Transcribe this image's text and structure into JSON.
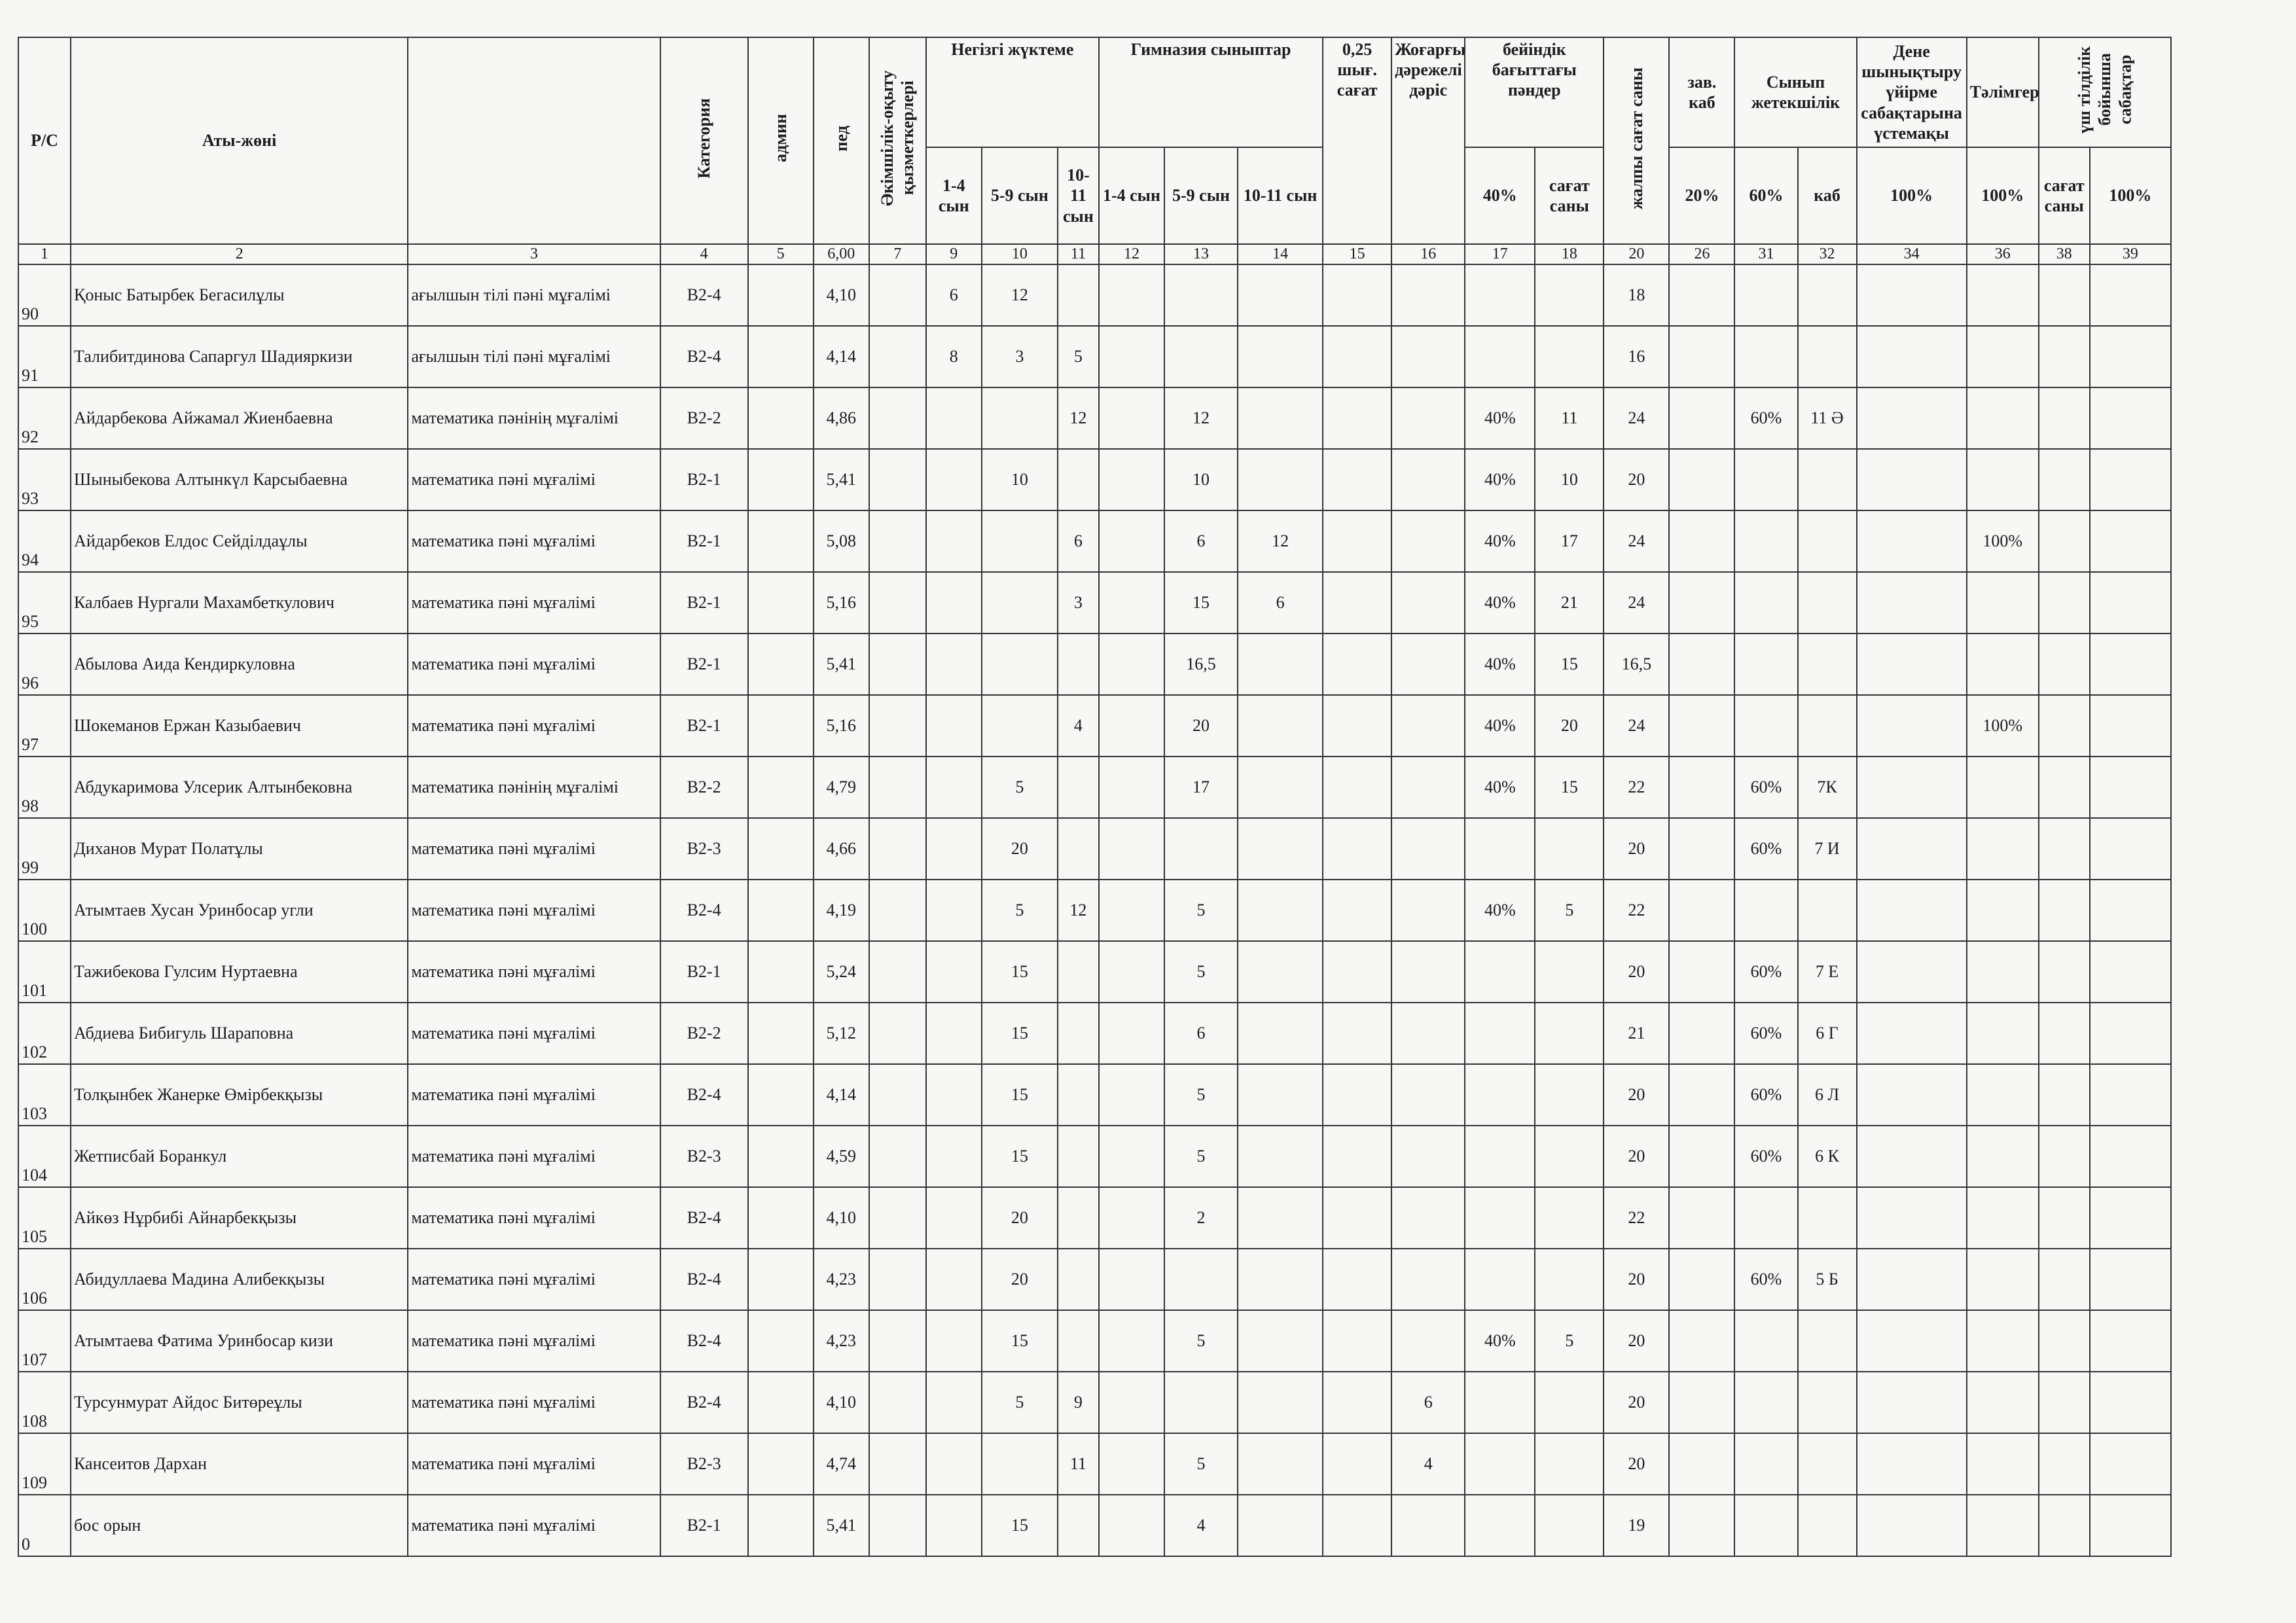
{
  "table": {
    "header": {
      "rs": "Р/С",
      "name": "Аты-жөні",
      "category": "Категория",
      "admin": "админ",
      "ped": "пед",
      "admin_teaching_staff": "Әкімшілік-оқыту қызметкерлері",
      "basic_load": "Негізгі жүктеме",
      "gymnasium_classes": "Гимназия сыныптар",
      "hours_025": "0,25 шығ. сағат",
      "higher_lecture": "Жоғарғы дәрежелі дәріс",
      "profile_subjects": "бейіндік бағыттағы пәндер",
      "total_hours": "жалпы сағат саны",
      "head_of_room": "зав. каб",
      "class_teacher": "Сынып жетекшілік",
      "pe_clubs": "Дене шынықтыру үйірме сабақтарына үстемақы",
      "mentoring": "Тәлімгерлік",
      "trilingual": "үш тілділік бойынша сабақтар"
    },
    "header_sub": [
      "1-4 сын",
      "5-9 сын",
      "10-11 сын",
      "1-4 сын",
      "5-9 сын",
      "10-11 сын",
      "40%",
      "сағат саны",
      "20%",
      "60%",
      "каб",
      "100%",
      "100%",
      "сағат саны",
      "100%"
    ],
    "column_numbers": [
      "1",
      "2",
      "3",
      "4",
      "5",
      "6,00",
      "7",
      "9",
      "10",
      "11",
      "12",
      "13",
      "14",
      "15",
      "16",
      "17",
      "18",
      "20",
      "26",
      "31",
      "32",
      "34",
      "36",
      "38",
      "39"
    ],
    "rows": [
      [
        "90",
        "Қоныс Батырбек Бегасилұлы",
        "ағылшын тілі пәні мұғалімі",
        "В2-4",
        null,
        "4,10",
        null,
        "6",
        "12",
        null,
        null,
        null,
        null,
        null,
        null,
        null,
        null,
        "18",
        null,
        null,
        null,
        null,
        null,
        null,
        null
      ],
      [
        "91",
        "Талибитдинова Сапаргул Шадияркизи",
        "ағылшын тілі пәні мұғалімі",
        "В2-4",
        null,
        "4,14",
        null,
        "8",
        "3",
        "5",
        null,
        null,
        null,
        null,
        null,
        null,
        null,
        "16",
        null,
        null,
        null,
        null,
        null,
        null,
        null
      ],
      [
        "92",
        "Айдарбекова Айжамал Жиенбаевна",
        "математика пәнінің мұғалімі",
        "В2-2",
        null,
        "4,86",
        null,
        null,
        null,
        "12",
        null,
        "12",
        null,
        null,
        null,
        "40%",
        "11",
        "24",
        null,
        "60%",
        "11 Ә",
        null,
        null,
        null,
        null
      ],
      [
        "93",
        "Шыныбекова Алтынкүл Карсыбаевна",
        "математика пәні мұғалімі",
        "В2-1",
        null,
        "5,41",
        null,
        null,
        "10",
        null,
        null,
        "10",
        null,
        null,
        null,
        "40%",
        "10",
        "20",
        null,
        null,
        null,
        null,
        null,
        null,
        null
      ],
      [
        "94",
        "Айдарбеков Елдос Сейділдаұлы",
        "математика пәні мұғалімі",
        "В2-1",
        null,
        "5,08",
        null,
        null,
        null,
        "6",
        null,
        "6",
        "12",
        null,
        null,
        "40%",
        "17",
        "24",
        null,
        null,
        null,
        null,
        "100%",
        null,
        null
      ],
      [
        "95",
        "Калбаев Нургали Махамбеткулович",
        "математика пәні мұғалімі",
        "В2-1",
        null,
        "5,16",
        null,
        null,
        null,
        "3",
        null,
        "15",
        "6",
        null,
        null,
        "40%",
        "21",
        "24",
        null,
        null,
        null,
        null,
        null,
        null,
        null
      ],
      [
        "96",
        "Абылова Аида Кендиркуловна",
        "математика пәні мұғалімі",
        "В2-1",
        null,
        "5,41",
        null,
        null,
        null,
        null,
        null,
        "16,5",
        null,
        null,
        null,
        "40%",
        "15",
        "16,5",
        null,
        null,
        null,
        null,
        null,
        null,
        null
      ],
      [
        "97",
        "Шокеманов Ержан Казыбаевич",
        "математика пәні мұғалімі",
        "В2-1",
        null,
        "5,16",
        null,
        null,
        null,
        "4",
        null,
        "20",
        null,
        null,
        null,
        "40%",
        "20",
        "24",
        null,
        null,
        null,
        null,
        "100%",
        null,
        null
      ],
      [
        "98",
        "Абдукаримова Улсерик Алтынбековна",
        "математика пәнінің мұғалімі",
        "В2-2",
        null,
        "4,79",
        null,
        null,
        "5",
        null,
        null,
        "17",
        null,
        null,
        null,
        "40%",
        "15",
        "22",
        null,
        "60%",
        "7К",
        null,
        null,
        null,
        null
      ],
      [
        "99",
        "Диханов Мурат Полатұлы",
        "математика пәні мұғалімі",
        "В2-3",
        null,
        "4,66",
        null,
        null,
        "20",
        null,
        null,
        null,
        null,
        null,
        null,
        null,
        null,
        "20",
        null,
        "60%",
        "7 И",
        null,
        null,
        null,
        null
      ],
      [
        "100",
        "Атымтаев Хусан Уринбосар угли",
        "математика пәні мұғалімі",
        "В2-4",
        null,
        "4,19",
        null,
        null,
        "5",
        "12",
        null,
        "5",
        null,
        null,
        null,
        "40%",
        "5",
        "22",
        null,
        null,
        null,
        null,
        null,
        null,
        null
      ],
      [
        "101",
        "Тажибекова Гулсим Нуртаевна",
        "математика пәні мұғалімі",
        "В2-1",
        null,
        "5,24",
        null,
        null,
        "15",
        null,
        null,
        "5",
        null,
        null,
        null,
        null,
        null,
        "20",
        null,
        "60%",
        "7 Е",
        null,
        null,
        null,
        null
      ],
      [
        "102",
        "Абдиева Бибигуль Шараповна",
        "математика пәні мұғалімі",
        "В2-2",
        null,
        "5,12",
        null,
        null,
        "15",
        null,
        null,
        "6",
        null,
        null,
        null,
        null,
        null,
        "21",
        null,
        "60%",
        "6 Г",
        null,
        null,
        null,
        null
      ],
      [
        "103",
        "Толқынбек Жанерке Өмірбекқызы",
        "математика пәні мұғалімі",
        "В2-4",
        null,
        "4,14",
        null,
        null,
        "15",
        null,
        null,
        "5",
        null,
        null,
        null,
        null,
        null,
        "20",
        null,
        "60%",
        "6 Л",
        null,
        null,
        null,
        null
      ],
      [
        "104",
        "Жетписбай Боранкул",
        "математика пәні мұғалімі",
        "В2-3",
        null,
        "4,59",
        null,
        null,
        "15",
        null,
        null,
        "5",
        null,
        null,
        null,
        null,
        null,
        "20",
        null,
        "60%",
        "6 К",
        null,
        null,
        null,
        null
      ],
      [
        "105",
        "Айкөз Нұрбибі Айнарбекқызы",
        "математика пәні мұғалімі",
        "В2-4",
        null,
        "4,10",
        null,
        null,
        "20",
        null,
        null,
        "2",
        null,
        null,
        null,
        null,
        null,
        "22",
        null,
        null,
        null,
        null,
        null,
        null,
        null
      ],
      [
        "106",
        "Абидуллаева Мадина Алибекқызы",
        "математика пәні мұғалімі",
        "В2-4",
        null,
        "4,23",
        null,
        null,
        "20",
        null,
        null,
        null,
        null,
        null,
        null,
        null,
        null,
        "20",
        null,
        "60%",
        "5 Б",
        null,
        null,
        null,
        null
      ],
      [
        "107",
        "Атымтаева Фатима Уринбосар кизи",
        "математика пәні мұғалімі",
        "В2-4",
        null,
        "4,23",
        null,
        null,
        "15",
        null,
        null,
        "5",
        null,
        null,
        null,
        "40%",
        "5",
        "20",
        null,
        null,
        null,
        null,
        null,
        null,
        null
      ],
      [
        "108",
        "Турсунмурат Айдос Битөреұлы",
        "математика пәні мұғалімі",
        "В2-4",
        null,
        "4,10",
        null,
        null,
        "5",
        "9",
        null,
        null,
        null,
        null,
        "6",
        null,
        null,
        "20",
        null,
        null,
        null,
        null,
        null,
        null,
        null
      ],
      [
        "109",
        "Кансеитов Дархан",
        "математика пәні мұғалімі",
        "В2-3",
        null,
        "4,74",
        null,
        null,
        null,
        "11",
        null,
        "5",
        null,
        null,
        "4",
        null,
        null,
        "20",
        null,
        null,
        null,
        null,
        null,
        null,
        null
      ],
      [
        "0",
        "бос орын",
        "математика пәні мұғалімі",
        "В2-1",
        null,
        "5,41",
        null,
        null,
        "15",
        null,
        null,
        "4",
        null,
        null,
        null,
        null,
        null,
        "19",
        null,
        null,
        null,
        null,
        null,
        null,
        null
      ]
    ]
  }
}
